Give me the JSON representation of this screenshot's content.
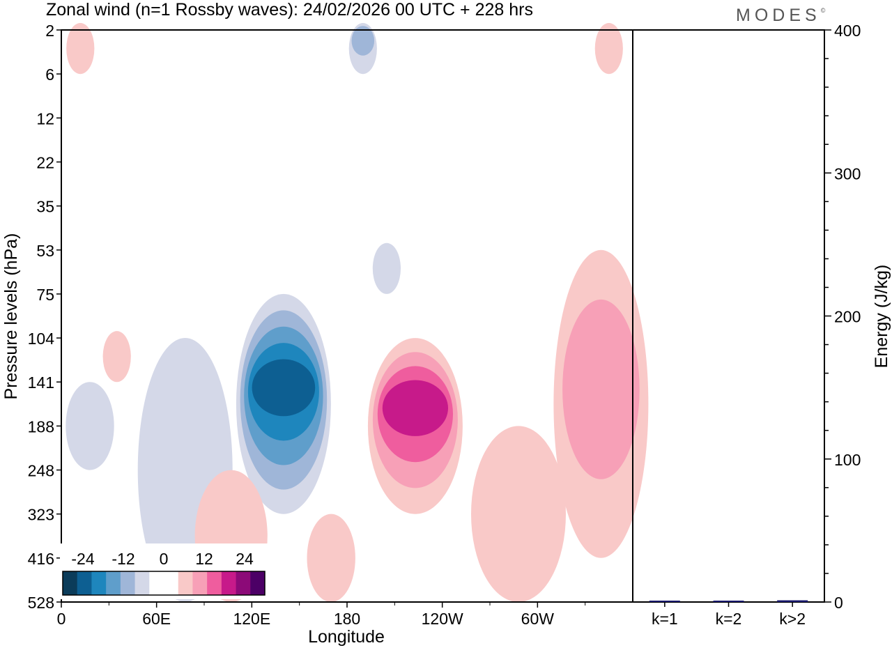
{
  "logo": {
    "text": "MODES",
    "mark": "©"
  },
  "colors": {
    "neg": [
      "#0b3c5a",
      "#0d5f92",
      "#1e86bd",
      "#5f9ecb",
      "#9fb6d8",
      "#d4d8e8"
    ],
    "pos": [
      "#f9c9c8",
      "#f7a0b7",
      "#ef5d9e",
      "#c71a8a",
      "#8c0a78",
      "#4c0066"
    ],
    "zero": "#ffffff",
    "energy_bar": "#1a1a6e"
  },
  "chart_data": [
    {
      "type": "heatmap",
      "title": "Zonal wind (n=1 Rossby waves):  24/02/2026  00 UTC  + 228 hrs",
      "xlabel": "Longitude",
      "ylabel": "Pressure levels (hPa)",
      "x_ticks": [
        "0",
        "60E",
        "120E",
        "180",
        "120W",
        "60W"
      ],
      "x_tick_values": [
        0,
        60,
        120,
        180,
        240,
        300
      ],
      "xlim": [
        0,
        360
      ],
      "y_ticks": [
        "2",
        "6",
        "12",
        "22",
        "35",
        "53",
        "75",
        "104",
        "141",
        "188",
        "248",
        "323",
        "416",
        "528"
      ],
      "y_direction": "top-to-bottom",
      "colorbar": {
        "labels": [
          "-24",
          "-12",
          "0",
          "12",
          "24"
        ],
        "label_values": [
          -24,
          -12,
          0,
          12,
          24
        ],
        "range": [
          -30,
          30
        ],
        "step": 4.6,
        "placement": "bottom-left"
      },
      "features": [
        {
          "sign": "negative",
          "peak": -22,
          "center_lon": 140,
          "center_level": "141",
          "top_level": "75",
          "bottom_level": "323"
        },
        {
          "sign": "positive",
          "peak": 20,
          "center_lon": 223,
          "center_level": "160",
          "top_level": "104",
          "bottom_level": "323"
        },
        {
          "sign": "positive",
          "peak": 10,
          "center_lon": 340,
          "center_level": "130",
          "top_level": "53",
          "bottom_level": "416"
        },
        {
          "sign": "negative",
          "peak": -6,
          "center_lon": 78,
          "center_level": "188",
          "top_level": "104",
          "bottom_level": "528"
        },
        {
          "sign": "negative",
          "peak": -5,
          "center_lon": 18,
          "center_level": "188",
          "top_level": "141",
          "bottom_level": "248"
        },
        {
          "sign": "negative",
          "peak": -5,
          "center_lon": 205,
          "center_level": "53",
          "top_level": "53",
          "bottom_level": "75"
        },
        {
          "sign": "negative",
          "peak": -8,
          "center_lon": 190,
          "center_level": "2",
          "top_level": "2",
          "bottom_level": "6"
        },
        {
          "sign": "positive",
          "peak": 4,
          "center_lon": 35,
          "center_level": "104",
          "top_level": "104",
          "bottom_level": "141"
        },
        {
          "sign": "positive",
          "peak": 4,
          "center_lon": 12,
          "center_level": "2",
          "top_level": "2",
          "bottom_level": "6"
        },
        {
          "sign": "positive",
          "peak": 4,
          "center_lon": 107,
          "center_level": "416",
          "top_level": "248",
          "bottom_level": "528"
        },
        {
          "sign": "positive",
          "peak": 3,
          "center_lon": 170,
          "center_level": "416",
          "top_level": "323",
          "bottom_level": "528"
        },
        {
          "sign": "positive",
          "peak": 4,
          "center_lon": 288,
          "center_level": "323",
          "top_level": "188",
          "bottom_level": "528"
        },
        {
          "sign": "positive",
          "peak": 3,
          "center_lon": 345,
          "center_level": "2",
          "top_level": "2",
          "bottom_level": "6"
        }
      ]
    },
    {
      "type": "bar",
      "ylabel": "Energy (J/kg)",
      "ylim": [
        0,
        400
      ],
      "y_ticks": [
        "0",
        "100",
        "200",
        "300",
        "400"
      ],
      "y_tick_values": [
        0,
        100,
        200,
        300,
        400
      ],
      "categories": [
        "k=1",
        "k=2",
        "k>2"
      ],
      "values": [
        0.3,
        0.3,
        1.2
      ]
    }
  ]
}
